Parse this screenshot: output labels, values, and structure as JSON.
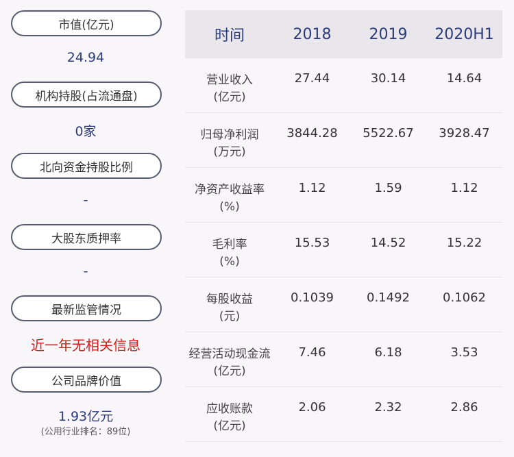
{
  "left": {
    "items": [
      {
        "label": "市值(亿元)",
        "value": "24.94"
      },
      {
        "label": "机构持股(占流通盘)",
        "value": "0家"
      },
      {
        "label": "北向资金持股比例",
        "value": "-"
      },
      {
        "label": "大股东质押率",
        "value": "-"
      },
      {
        "label": "最新监管情况",
        "value": "近一年无相关信息"
      },
      {
        "label": "公司品牌价值",
        "value": "1.93亿元",
        "sub": "(公用行业排名：89位)"
      }
    ]
  },
  "table": {
    "headers": [
      "时间",
      "2018",
      "2019",
      "2020H1"
    ],
    "rows": [
      {
        "label1": "营业收入",
        "label2": "(亿元)",
        "values": [
          "27.44",
          "30.14",
          "14.64"
        ]
      },
      {
        "label1": "归母净利润",
        "label2": "(万元)",
        "values": [
          "3844.28",
          "5522.67",
          "3928.47"
        ]
      },
      {
        "label1": "净资产收益率",
        "label2": "(%)",
        "values": [
          "1.12",
          "1.59",
          "1.12"
        ]
      },
      {
        "label1": "毛利率",
        "label2": "(%)",
        "values": [
          "15.53",
          "14.52",
          "15.22"
        ]
      },
      {
        "label1": "每股收益",
        "label2": "(元)",
        "values": [
          "0.1039",
          "0.1492",
          "0.1062"
        ]
      },
      {
        "label1": "经营活动现金流",
        "label2": "(亿元)",
        "values": [
          "7.46",
          "6.18",
          "3.53"
        ]
      },
      {
        "label1": "应收账款",
        "label2": "(亿元)",
        "values": [
          "2.06",
          "2.32",
          "2.86"
        ]
      }
    ]
  }
}
